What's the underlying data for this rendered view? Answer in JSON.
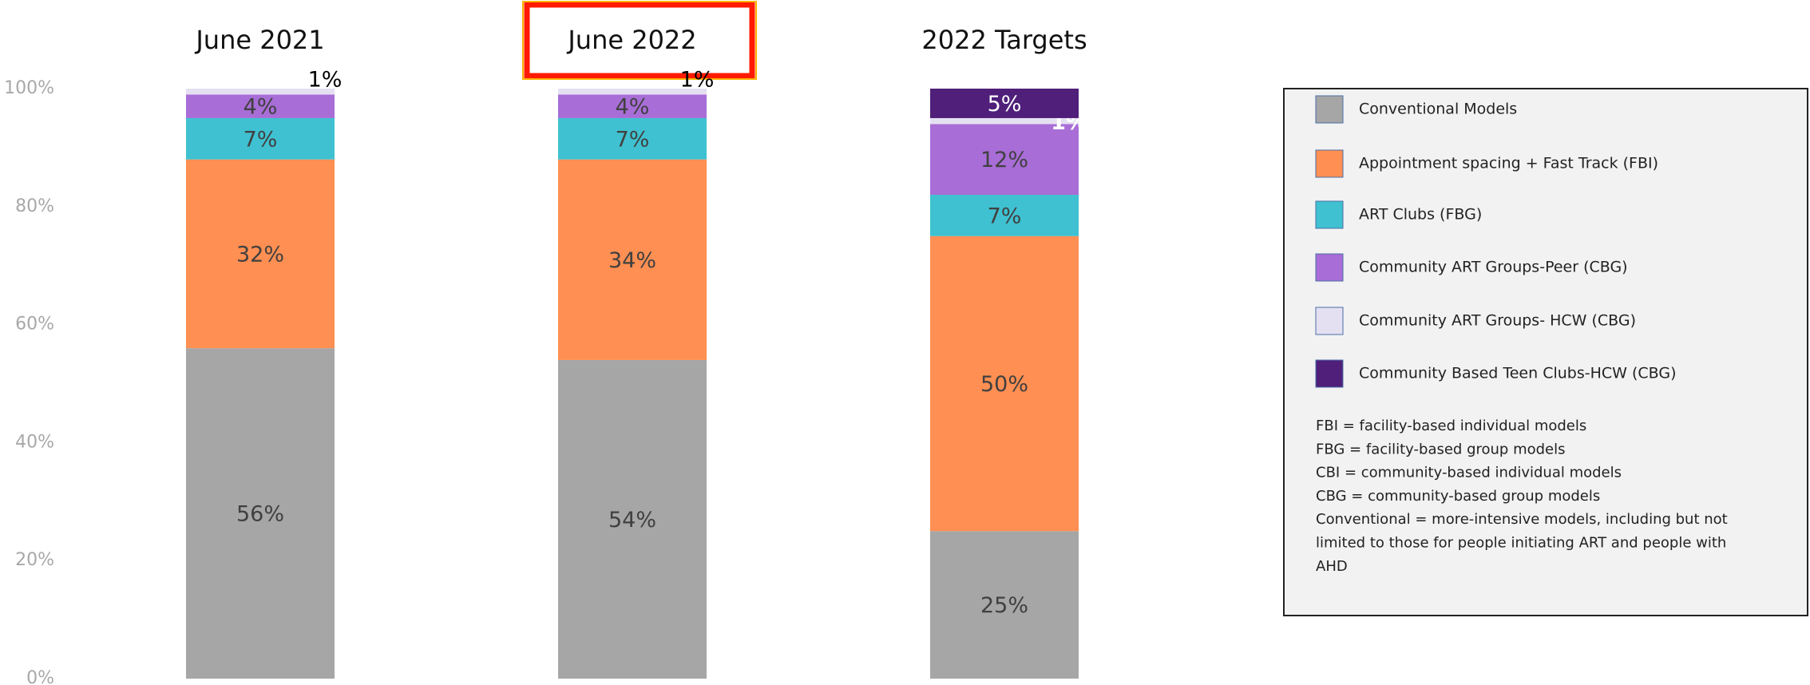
{
  "chart_data": {
    "type": "stacked_bar",
    "categories": [
      "June 2021",
      "June 2022",
      "2022 Targets"
    ],
    "series": [
      {
        "name": "Conventional Models",
        "color": "#a6a6a6",
        "values": [
          56,
          54,
          25
        ],
        "value_labels": [
          "56%",
          "54%",
          "25%"
        ]
      },
      {
        "name": "Appointment spacing + Fast Track (FBI)",
        "color": "#ff8f52",
        "values": [
          32,
          34,
          50
        ],
        "value_labels": [
          "32%",
          "34%",
          "50%"
        ]
      },
      {
        "name": "ART Clubs (FBG)",
        "color": "#3fc1d1",
        "values": [
          7,
          7,
          7
        ],
        "value_labels": [
          "7%",
          "7%",
          "7%"
        ]
      },
      {
        "name": "Community ART Groups-Peer (CBG)",
        "color": "#a86dd6",
        "values": [
          4,
          4,
          12
        ],
        "value_labels": [
          "4%",
          "4%",
          "12%"
        ]
      },
      {
        "name": "Community ART Groups- HCW (CBG)",
        "color": "#e4e0f2",
        "values": [
          1,
          1,
          1
        ],
        "value_labels": [
          "1%",
          "1%",
          "1%"
        ]
      },
      {
        "name": "Community Based Teen Clubs-HCW (CBG)",
        "color": "#4f1f7a",
        "values": [
          null,
          null,
          5
        ],
        "value_labels": [
          null,
          null,
          "5%"
        ]
      }
    ],
    "ylim": [
      0,
      100
    ],
    "yticks": [
      {
        "value": 0,
        "label": "0%"
      },
      {
        "value": 20,
        "label": "20%"
      },
      {
        "value": 40,
        "label": "40%"
      },
      {
        "value": 60,
        "label": "60%"
      },
      {
        "value": 80,
        "label": "80%"
      },
      {
        "value": 100,
        "label": "100%"
      }
    ],
    "legend_position": "right",
    "annotations": [
      "FBI = facility-based individual models",
      "FBG = facility-based group models",
      "CBI = community-based individual models",
      "CBG = community-based group models",
      "Conventional = more-intensive models, including but not",
      "limited to those for people initiating ART and people with",
      "AHD"
    ]
  }
}
